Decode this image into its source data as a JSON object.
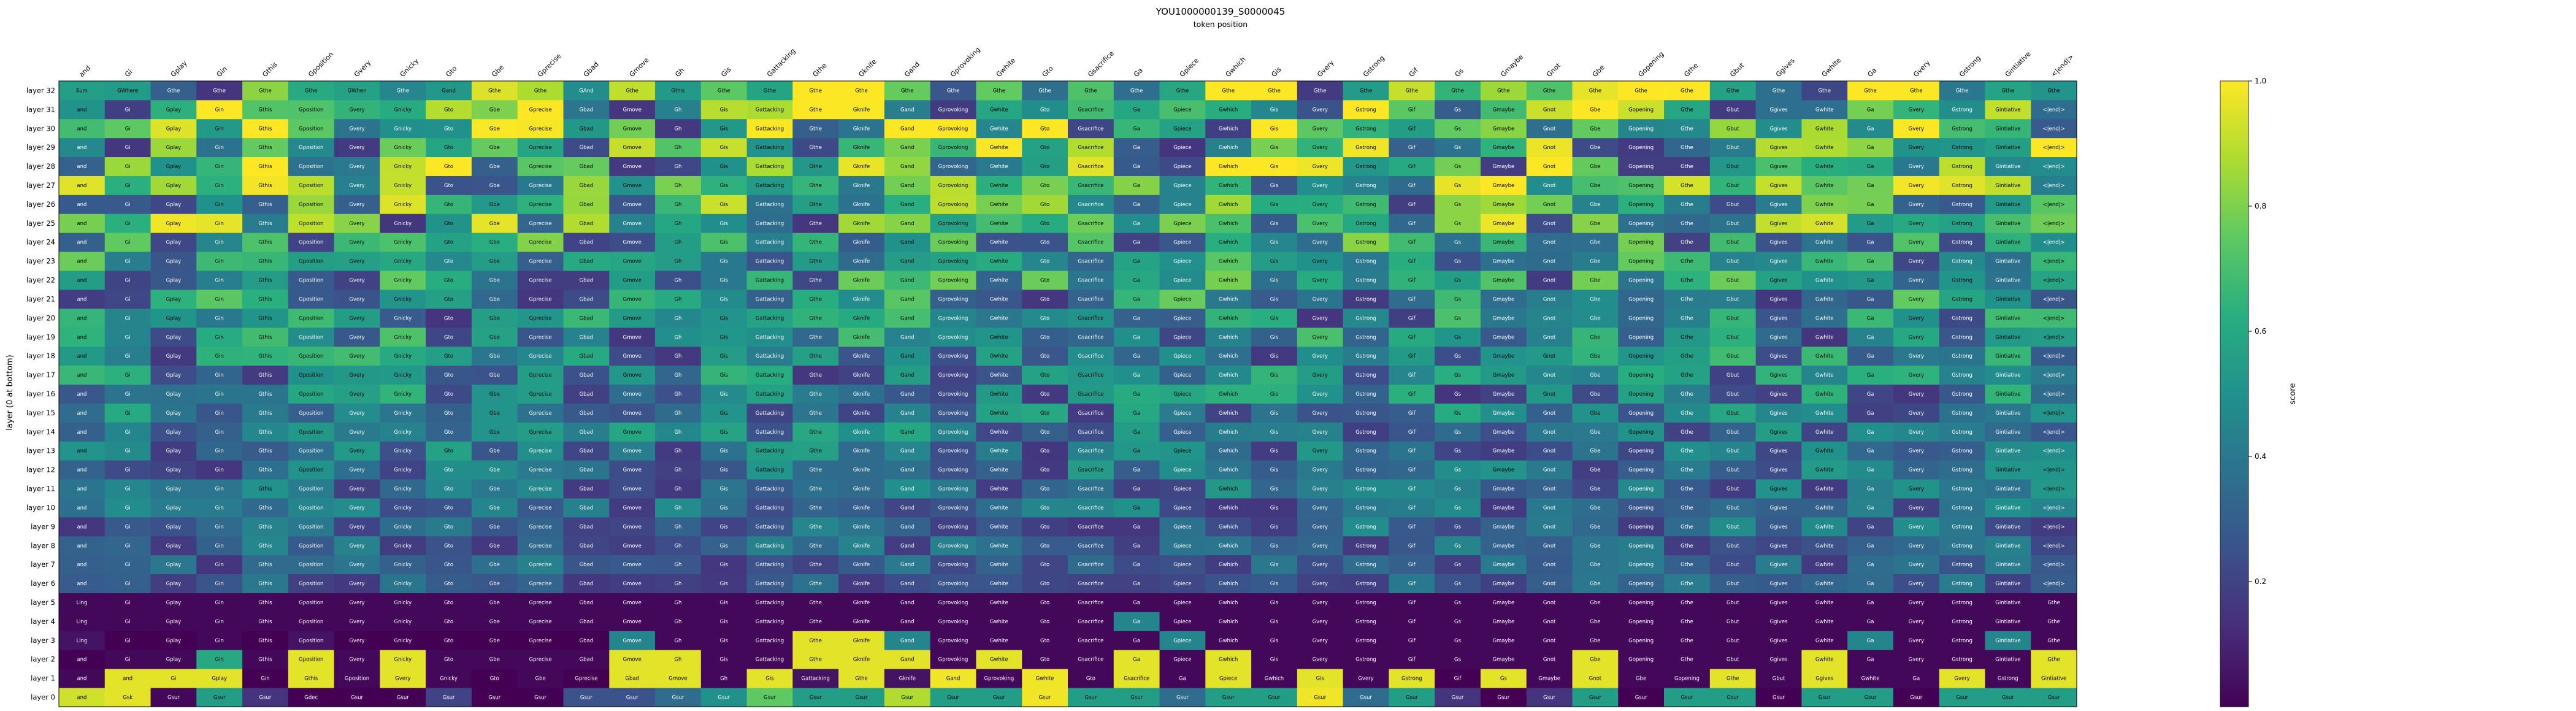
{
  "chart_data": {
    "type": "heatmap",
    "title": "YOU1000000139_S0000045",
    "subtitle": "token position",
    "ylabel": "layer (0 at bottom)",
    "colorbar": {
      "label": "score",
      "range": [
        0.0,
        1.0
      ],
      "ticks": [
        "0.2",
        "0.4",
        "0.6",
        "0.8",
        "1.0"
      ],
      "colormap": "viridis"
    },
    "x_tokens": [
      "and",
      "Gi",
      "Gplay",
      "Gin",
      "Gthis",
      "Gposition",
      "Gvery",
      "Gnicky",
      "Gto",
      "Gbe",
      "Gprecise",
      "Gbad",
      "Gmove",
      "Gh",
      "Gis",
      "Gattacking",
      "Gthe",
      "Gknife",
      "Gand",
      "Gprovoking",
      "Gwhite",
      "Gto",
      "Gsacrifice",
      "Ga",
      "Gpiece",
      "Gwhich",
      "Gis",
      "Gvery",
      "Gstrong",
      "Gif",
      "Gs",
      "Gmaybe",
      "Gnot",
      "Gbe",
      "Gopening",
      "Gthe",
      "Gbut",
      "Ggives",
      "Gwhite",
      "Ga",
      "Gvery",
      "Gstrong",
      "Gintiative",
      "<|end|>"
    ],
    "layers": [
      "layer 0",
      "layer 1",
      "layer 2",
      "layer 3",
      "layer 4",
      "layer 5",
      "layer 6",
      "layer 7",
      "layer 8",
      "layer 9",
      "layer 10",
      "layer 11",
      "layer 12",
      "layer 13",
      "layer 14",
      "layer 15",
      "layer 16",
      "layer 17",
      "layer 18",
      "layer 19",
      "layer 20",
      "layer 21",
      "layer 22",
      "layer 23",
      "layer 24",
      "layer 25",
      "layer 26",
      "layer 27",
      "layer 28",
      "layer 29",
      "layer 30",
      "layer 31",
      "layer 32"
    ],
    "cells_top_row_words": [
      "Sum",
      "GWhere",
      "Gthe",
      "Gthe",
      "Gthe",
      "Gthe",
      "GWhen",
      "Gthe",
      "Gand",
      "Gthe",
      "Gthe",
      "GAnd",
      "Gthe",
      "Gthis",
      "Gthe",
      "Gthe",
      "Gthe",
      "Gthe",
      "Gthe",
      "Gthe",
      "Gthe",
      "Gthe",
      "Gthe",
      "Gthe",
      "Gthe",
      "Gthe",
      "Gthe",
      "Gthe",
      "Gthe",
      "Gthe",
      "Gthe",
      "Gthe",
      "Gthe",
      "Gthe",
      "Gthe",
      "Gthe",
      "Gthe",
      "Gthe",
      "Gthe",
      "Gthe",
      "Gthe",
      "Gthe",
      "Gthe",
      "Gthe"
    ],
    "layer_words": [
      [
        "and",
        "Gsk",
        "Gsur",
        "Gsur",
        "Gsur",
        "Gdec",
        "Gsur",
        "Gsur",
        "Gsur",
        "Gsur",
        "Gsur",
        "Gsur",
        "Gsur",
        "Gsur",
        "Gsur",
        "Gsur",
        "Gsur",
        "Gsur",
        "Gsur",
        "Gsur",
        "Gsur",
        "Gsur",
        "Gsur",
        "Gsur",
        "Gsur",
        "Gsur",
        "Gsur",
        "Gsur",
        "Gsur",
        "Gsur",
        "Gsur",
        "Gsur",
        "Gsur",
        "Gsur",
        "Gsur",
        "Gsur",
        "Gsur",
        "Gsur",
        "Gsur",
        "Gsur",
        "Gsur",
        "Gsur",
        "Gsur",
        "Gsur"
      ],
      [
        "and",
        "and",
        "Gi",
        "Gplay",
        "Gin",
        "Gthis",
        "Gposition",
        "Gvery",
        "Gnicky",
        "Gto",
        "Gbe",
        "Gprecise",
        "Gbad",
        "Gmove",
        "Gh",
        "Gis",
        "Gattacking",
        "Gthe",
        "Gknife",
        "Gand",
        "Gprovoking",
        "Gwhite",
        "Gto",
        "Gsacrifice",
        "Ga",
        "Gpiece",
        "Gwhich",
        "Gis",
        "Gvery",
        "Gstrong",
        "Gif",
        "Gs",
        "Gmaybe",
        "Gnot",
        "Gbe",
        "Gopening",
        "Gthe",
        "Gbut",
        "Ggives",
        "Gwhite",
        "Ga",
        "Gvery",
        "Gstrong",
        "Gintiative"
      ],
      [
        "and",
        "Gi",
        "Gplay",
        "Gin",
        "Gthis",
        "Gposition",
        "Gvery",
        "Gnicky",
        "Gto",
        "Gbe",
        "Gprecise",
        "Gbad",
        "Gmove",
        "Gh",
        "Gis",
        "Gattacking",
        "Gthe",
        "Gknife",
        "Gand",
        "Gprovoking",
        "Gwhite",
        "Gto",
        "Gsacrifice",
        "Ga",
        "Gpiece",
        "Gwhich",
        "Gis",
        "Gvery",
        "Gstrong",
        "Gif",
        "Gs",
        "Gmaybe",
        "Gnot",
        "Gbe",
        "Gopening",
        "Gthe",
        "Gbut",
        "Ggives",
        "Gwhite",
        "Ga",
        "Gvery",
        "Gstrong",
        "Gintiative",
        "Gthe"
      ],
      [
        "Ling",
        "Gi",
        "Gplay",
        "Gin",
        "Gthis",
        "Gposition",
        "Gvery",
        "Gnicky",
        "Gto",
        "Gbe",
        "Gprecise",
        "Gbad",
        "Gmove",
        "Gh",
        "Gis",
        "Gattacking",
        "Gthe",
        "Gknife",
        "Gand",
        "Gprovoking",
        "Gwhite",
        "Gto",
        "Gsacrifice",
        "Ga",
        "Gpiece",
        "Gwhich",
        "Gis",
        "Gvery",
        "Gstrong",
        "Gif",
        "Gs",
        "Gmaybe",
        "Gnot",
        "Gbe",
        "Gopening",
        "Gthe",
        "Gbut",
        "Ggives",
        "Gwhite",
        "Ga",
        "Gvery",
        "Gstrong",
        "Gintiative",
        "Gthe"
      ],
      [
        "Ling",
        "Gi",
        "Gplay",
        "Gin",
        "Gthis",
        "Gposition",
        "Gvery",
        "Gnicky",
        "Gto",
        "Gbe",
        "Gprecise",
        "Gbad",
        "Gmove",
        "Gh",
        "Gis",
        "Gattacking",
        "Gthe",
        "Gknife",
        "Gand",
        "Gprovoking",
        "Gwhite",
        "Gto",
        "Gsacrifice",
        "Ga",
        "Gpiece",
        "Gwhich",
        "Gis",
        "Gvery",
        "Gstrong",
        "Gif",
        "Gs",
        "Gmaybe",
        "Gnot",
        "Gbe",
        "Gopening",
        "Gthe",
        "Gbut",
        "Ggives",
        "Gwhite",
        "Ga",
        "Gvery",
        "Gstrong",
        "Gintiative",
        "Gthe"
      ],
      [
        "Ling",
        "Gi",
        "Gplay",
        "Gin",
        "Gthis",
        "Gposition",
        "Gvery",
        "Gnicky",
        "Gto",
        "Gbe",
        "Gprecise",
        "Gbad",
        "Gmove",
        "Gh",
        "Gis",
        "Gattacking",
        "Gthe",
        "Gknife",
        "Gand",
        "Gprovoking",
        "Gwhite",
        "Gto",
        "Gsacrifice",
        "Ga",
        "Gpiece",
        "Gwhich",
        "Gis",
        "Gvery",
        "Gstrong",
        "Gif",
        "Gs",
        "Gmaybe",
        "Gnot",
        "Gbe",
        "Gopening",
        "Gthe",
        "Gbut",
        "Ggives",
        "Gwhite",
        "Ga",
        "Gvery",
        "Gstrong",
        "Gintiative",
        "Gthe"
      ]
    ],
    "layer_scores": [
      [
        0.93,
        0.96,
        0.02,
        0.55,
        0.15,
        0.0,
        0.0,
        0.0,
        0.2,
        0.0,
        0.0,
        0.25,
        0.25,
        0.35,
        0.5,
        0.75,
        0.55,
        0.55,
        0.88,
        0.55,
        0.55,
        0.98,
        0.55,
        0.55,
        0.35,
        0.55,
        0.55,
        0.98,
        0.35,
        0.55,
        0.15,
        0.0,
        0.15,
        0.55,
        0.0,
        0.55,
        0.55,
        0.0,
        0.55,
        0.55,
        0.0,
        0.55,
        0.55,
        0.55
      ],
      [
        0.02,
        0.96,
        0.96,
        0.96,
        0.0,
        0.96,
        0.02,
        0.96,
        0.02,
        0.0,
        0.02,
        0.0,
        0.96,
        0.96,
        0.02,
        0.96,
        0.05,
        0.96,
        0.05,
        0.98,
        0.02,
        0.98,
        0.02,
        0.96,
        0.02,
        0.96,
        0.02,
        0.96,
        0.02,
        0.96,
        0.0,
        0.96,
        0.02,
        0.96,
        0.02,
        0.02,
        0.96,
        0.02,
        0.96,
        0.02,
        0.02,
        0.96,
        0.02,
        0.96
      ],
      [
        0.0,
        0.02,
        0.02,
        0.6,
        0.02,
        0.96,
        0.02,
        0.96,
        0.02,
        0.02,
        0.02,
        0.02,
        0.96,
        0.96,
        0.02,
        0.02,
        0.96,
        0.96,
        0.96,
        0.02,
        0.96,
        0.02,
        0.02,
        0.96,
        0.02,
        0.96,
        0.02,
        0.02,
        0.02,
        0.02,
        0.02,
        0.02,
        0.02,
        0.96,
        0.02,
        0.02,
        0.02,
        0.02,
        0.96,
        0.02,
        0.02,
        0.02,
        0.02,
        0.96
      ],
      [
        0.05,
        0.0,
        0.0,
        0.02,
        0.0,
        0.05,
        0.0,
        0.0,
        0.0,
        0.0,
        0.0,
        0.0,
        0.45,
        0.02,
        0.02,
        0.02,
        0.96,
        0.96,
        0.45,
        0.02,
        0.02,
        0.02,
        0.02,
        0.02,
        0.45,
        0.02,
        0.02,
        0.02,
        0.02,
        0.02,
        0.02,
        0.02,
        0.02,
        0.02,
        0.02,
        0.02,
        0.02,
        0.02,
        0.02,
        0.45,
        0.02,
        0.02,
        0.45,
        0.02
      ],
      [
        0.02,
        0.02,
        0.02,
        0.02,
        0.02,
        0.02,
        0.02,
        0.02,
        0.02,
        0.02,
        0.02,
        0.02,
        0.02,
        0.02,
        0.02,
        0.02,
        0.02,
        0.02,
        0.02,
        0.02,
        0.02,
        0.02,
        0.02,
        0.45,
        0.02,
        0.02,
        0.02,
        0.02,
        0.02,
        0.02,
        0.02,
        0.02,
        0.02,
        0.02,
        0.02,
        0.02,
        0.02,
        0.02,
        0.02,
        0.02,
        0.02,
        0.02,
        0.02,
        0.02
      ],
      [
        0.02,
        0.02,
        0.02,
        0.02,
        0.02,
        0.02,
        0.02,
        0.02,
        0.02,
        0.02,
        0.02,
        0.02,
        0.02,
        0.02,
        0.02,
        0.02,
        0.02,
        0.02,
        0.02,
        0.02,
        0.02,
        0.02,
        0.02,
        0.02,
        0.02,
        0.02,
        0.02,
        0.02,
        0.02,
        0.02,
        0.02,
        0.02,
        0.02,
        0.02,
        0.02,
        0.02,
        0.02,
        0.02,
        0.02,
        0.02,
        0.02,
        0.02,
        0.02,
        0.02
      ]
    ]
  }
}
